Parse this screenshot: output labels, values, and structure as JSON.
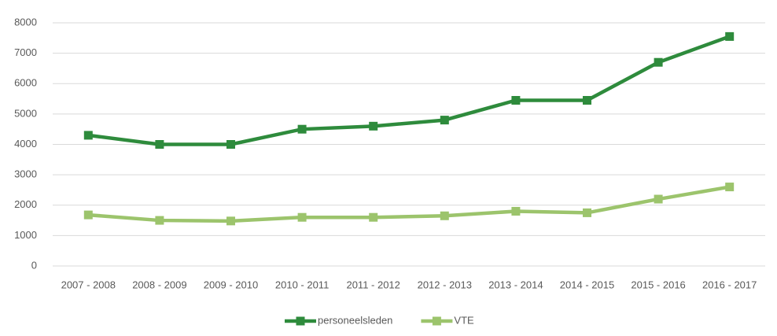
{
  "chart_data": {
    "type": "line",
    "categories": [
      "2007 - 2008",
      "2008 - 2009",
      "2009 - 2010",
      "2010 - 2011",
      "2011 - 2012",
      "2012 - 2013",
      "2013 - 2014",
      "2014 - 2015",
      "2015 - 2016",
      "2016 - 2017"
    ],
    "series": [
      {
        "name": "personeelsleden",
        "color": "#2e8b3c",
        "values": [
          4300,
          4000,
          4000,
          4500,
          4600,
          4800,
          5450,
          5450,
          6700,
          7550
        ]
      },
      {
        "name": "VTE",
        "color": "#9cc46c",
        "values": [
          1680,
          1500,
          1480,
          1600,
          1600,
          1650,
          1800,
          1750,
          2200,
          2600
        ]
      }
    ],
    "ylim": [
      0,
      8000
    ],
    "yticks": [
      0,
      1000,
      2000,
      3000,
      4000,
      5000,
      6000,
      7000,
      8000
    ],
    "grid": true,
    "legend": "bottom"
  }
}
